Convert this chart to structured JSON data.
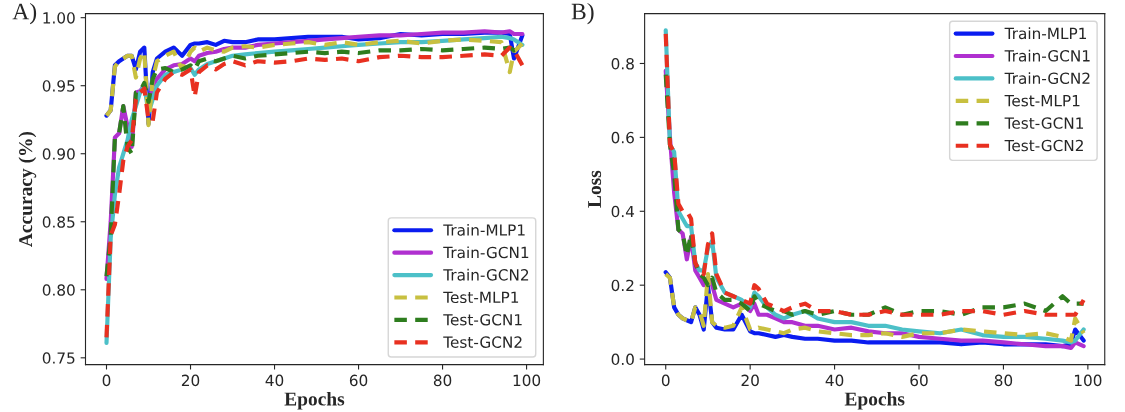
{
  "chart_data": [
    {
      "type": "line",
      "title": "A)",
      "xlabel": "Epochs",
      "ylabel": "Accuracy (%)",
      "xlim": [
        -5,
        104
      ],
      "xticks": [
        0,
        20,
        40,
        60,
        80,
        100
      ],
      "ylim": [
        0.745,
        1.003
      ],
      "yticks": [
        {
          "value": 0.75,
          "label": "0.75"
        },
        {
          "value": 0.8,
          "label": "0.80"
        },
        {
          "value": 0.85,
          "label": "0.85"
        },
        {
          "value": 0.9,
          "label": "0.90"
        },
        {
          "value": 0.95,
          "label": "0.95"
        },
        {
          "value": 1.0,
          "label": "1.00"
        }
      ],
      "grid": false,
      "legend": "bottom right",
      "x": [
        0,
        1,
        2,
        3,
        4,
        5,
        6,
        7,
        8,
        9,
        10,
        11,
        12,
        14,
        16,
        18,
        20,
        21,
        22,
        24,
        26,
        28,
        30,
        33,
        36,
        40,
        44,
        48,
        52,
        56,
        60,
        65,
        70,
        75,
        80,
        85,
        90,
        94,
        96,
        97,
        99
      ],
      "series": [
        {
          "name": "Train-MLP1",
          "color": "#0a1cf0",
          "line_style": "solid",
          "values": [
            0.928,
            0.932,
            0.965,
            0.968,
            0.97,
            0.972,
            0.972,
            0.962,
            0.975,
            0.978,
            0.922,
            0.96,
            0.97,
            0.975,
            0.978,
            0.972,
            0.98,
            0.981,
            0.981,
            0.982,
            0.98,
            0.983,
            0.982,
            0.982,
            0.984,
            0.984,
            0.985,
            0.986,
            0.986,
            0.986,
            0.984,
            0.985,
            0.988,
            0.987,
            0.988,
            0.988,
            0.989,
            0.989,
            0.988,
            0.97,
            0.987
          ]
        },
        {
          "name": "Train-GCN1",
          "color": "#b030d0",
          "line_style": "solid",
          "values": [
            0.808,
            0.85,
            0.912,
            0.915,
            0.935,
            0.92,
            0.905,
            0.945,
            0.946,
            0.95,
            0.935,
            0.95,
            0.955,
            0.962,
            0.965,
            0.966,
            0.97,
            0.968,
            0.972,
            0.974,
            0.975,
            0.977,
            0.978,
            0.978,
            0.98,
            0.981,
            0.982,
            0.983,
            0.984,
            0.985,
            0.986,
            0.987,
            0.987,
            0.988,
            0.989,
            0.989,
            0.99,
            0.989,
            0.99,
            0.988,
            0.988
          ]
        },
        {
          "name": "Train-GCN2",
          "color": "#4cc0c8",
          "line_style": "solid",
          "values": [
            0.761,
            0.838,
            0.87,
            0.89,
            0.9,
            0.91,
            0.925,
            0.935,
            0.945,
            0.95,
            0.93,
            0.94,
            0.95,
            0.958,
            0.96,
            0.962,
            0.963,
            0.958,
            0.962,
            0.966,
            0.968,
            0.97,
            0.972,
            0.973,
            0.974,
            0.975,
            0.976,
            0.977,
            0.978,
            0.979,
            0.98,
            0.981,
            0.982,
            0.982,
            0.983,
            0.984,
            0.985,
            0.986,
            0.985,
            0.984,
            0.98
          ]
        },
        {
          "name": "Test-MLP1",
          "color": "#c8c040",
          "line_style": "dashed",
          "values": [
            0.928,
            0.932,
            0.964,
            0.968,
            0.97,
            0.972,
            0.972,
            0.956,
            0.97,
            0.975,
            0.921,
            0.955,
            0.968,
            0.972,
            0.975,
            0.962,
            0.975,
            0.978,
            0.975,
            0.978,
            0.976,
            0.975,
            0.978,
            0.979,
            0.978,
            0.98,
            0.981,
            0.982,
            0.98,
            0.982,
            0.98,
            0.982,
            0.983,
            0.981,
            0.983,
            0.984,
            0.983,
            0.982,
            0.96,
            0.975,
            0.981
          ]
        },
        {
          "name": "Test-GCN1",
          "color": "#2e7d1e",
          "line_style": "dashed",
          "values": [
            0.81,
            0.84,
            0.912,
            0.915,
            0.935,
            0.905,
            0.9,
            0.945,
            0.946,
            0.952,
            0.938,
            0.955,
            0.962,
            0.963,
            0.96,
            0.962,
            0.965,
            0.962,
            0.968,
            0.97,
            0.968,
            0.97,
            0.972,
            0.97,
            0.972,
            0.973,
            0.974,
            0.975,
            0.974,
            0.975,
            0.974,
            0.976,
            0.976,
            0.977,
            0.976,
            0.977,
            0.978,
            0.977,
            0.978,
            0.976,
            0.978
          ]
        },
        {
          "name": "Test-GCN2",
          "color": "#e83020",
          "line_style": "dashed",
          "values": [
            0.765,
            0.84,
            0.848,
            0.87,
            0.895,
            0.905,
            0.91,
            0.94,
            0.945,
            0.948,
            0.925,
            0.924,
            0.945,
            0.955,
            0.96,
            0.958,
            0.962,
            0.942,
            0.96,
            0.965,
            0.962,
            0.966,
            0.968,
            0.965,
            0.968,
            0.967,
            0.968,
            0.97,
            0.969,
            0.97,
            0.968,
            0.971,
            0.972,
            0.971,
            0.971,
            0.972,
            0.973,
            0.972,
            0.978,
            0.976,
            0.965
          ]
        }
      ]
    },
    {
      "type": "line",
      "title": "B)",
      "xlabel": "Epochs",
      "ylabel": "Loss",
      "xlim": [
        -5,
        104
      ],
      "xticks": [
        0,
        20,
        40,
        60,
        80,
        100
      ],
      "ylim": [
        -0.015,
        0.935
      ],
      "yticks": [
        {
          "value": 0,
          "label": "0.0"
        },
        {
          "value": 0.2,
          "label": "0.2"
        },
        {
          "value": 0.4,
          "label": "0.4"
        },
        {
          "value": 0.6,
          "label": "0.6"
        },
        {
          "value": 0.8,
          "label": "0.8"
        }
      ],
      "grid": false,
      "legend": "top right",
      "x": [
        0,
        1,
        2,
        3,
        4,
        5,
        6,
        7,
        8,
        9,
        10,
        11,
        12,
        14,
        16,
        18,
        20,
        21,
        22,
        24,
        26,
        28,
        30,
        33,
        36,
        40,
        44,
        48,
        52,
        56,
        60,
        65,
        70,
        75,
        80,
        85,
        90,
        94,
        96,
        97,
        99
      ],
      "series": [
        {
          "name": "Train-MLP1",
          "color": "#0a1cf0",
          "line_style": "solid",
          "values": [
            0.235,
            0.22,
            0.14,
            0.12,
            0.11,
            0.105,
            0.1,
            0.14,
            0.12,
            0.08,
            0.2,
            0.1,
            0.085,
            0.08,
            0.08,
            0.12,
            0.075,
            0.07,
            0.07,
            0.065,
            0.06,
            0.065,
            0.06,
            0.055,
            0.055,
            0.05,
            0.05,
            0.045,
            0.045,
            0.045,
            0.045,
            0.045,
            0.04,
            0.045,
            0.04,
            0.04,
            0.04,
            0.035,
            0.04,
            0.08,
            0.05
          ]
        },
        {
          "name": "Train-GCN1",
          "color": "#b030d0",
          "line_style": "solid",
          "values": [
            0.78,
            0.6,
            0.45,
            0.35,
            0.34,
            0.27,
            0.33,
            0.24,
            0.22,
            0.2,
            0.22,
            0.2,
            0.16,
            0.15,
            0.14,
            0.15,
            0.13,
            0.15,
            0.12,
            0.12,
            0.11,
            0.1,
            0.1,
            0.09,
            0.09,
            0.08,
            0.085,
            0.075,
            0.07,
            0.07,
            0.06,
            0.055,
            0.05,
            0.05,
            0.045,
            0.04,
            0.035,
            0.035,
            0.03,
            0.045,
            0.035
          ]
        },
        {
          "name": "Train-GCN2",
          "color": "#4cc0c8",
          "line_style": "solid",
          "values": [
            0.89,
            0.58,
            0.56,
            0.4,
            0.38,
            0.36,
            0.36,
            0.26,
            0.24,
            0.24,
            0.3,
            0.32,
            0.22,
            0.18,
            0.17,
            0.16,
            0.14,
            0.18,
            0.17,
            0.14,
            0.12,
            0.11,
            0.12,
            0.13,
            0.11,
            0.1,
            0.1,
            0.09,
            0.09,
            0.08,
            0.075,
            0.07,
            0.08,
            0.065,
            0.06,
            0.06,
            0.055,
            0.05,
            0.045,
            0.05,
            0.08
          ]
        },
        {
          "name": "Test-MLP1",
          "color": "#c8c040",
          "line_style": "dashed",
          "values": [
            0.23,
            0.22,
            0.14,
            0.12,
            0.11,
            0.105,
            0.1,
            0.14,
            0.13,
            0.09,
            0.23,
            0.1,
            0.09,
            0.085,
            0.09,
            0.14,
            0.08,
            0.08,
            0.085,
            0.08,
            0.075,
            0.07,
            0.08,
            0.085,
            0.075,
            0.07,
            0.065,
            0.065,
            0.07,
            0.06,
            0.07,
            0.07,
            0.08,
            0.075,
            0.07,
            0.065,
            0.07,
            0.06,
            0.05,
            0.11,
            0.07
          ]
        },
        {
          "name": "Test-GCN1",
          "color": "#2e7d1e",
          "line_style": "dashed",
          "values": [
            0.77,
            0.58,
            0.5,
            0.35,
            0.34,
            0.28,
            0.34,
            0.26,
            0.23,
            0.22,
            0.2,
            0.22,
            0.18,
            0.16,
            0.16,
            0.15,
            0.13,
            0.17,
            0.15,
            0.14,
            0.13,
            0.13,
            0.12,
            0.13,
            0.12,
            0.13,
            0.12,
            0.12,
            0.14,
            0.12,
            0.13,
            0.13,
            0.12,
            0.14,
            0.14,
            0.15,
            0.13,
            0.17,
            0.15,
            0.15,
            0.15
          ]
        },
        {
          "name": "Test-GCN2",
          "color": "#e83020",
          "line_style": "dashed",
          "values": [
            0.88,
            0.58,
            0.56,
            0.42,
            0.4,
            0.4,
            0.38,
            0.26,
            0.24,
            0.23,
            0.31,
            0.34,
            0.23,
            0.18,
            0.17,
            0.16,
            0.15,
            0.2,
            0.19,
            0.15,
            0.14,
            0.13,
            0.14,
            0.15,
            0.13,
            0.13,
            0.12,
            0.12,
            0.13,
            0.12,
            0.12,
            0.12,
            0.13,
            0.13,
            0.12,
            0.13,
            0.12,
            0.12,
            0.12,
            0.12,
            0.16
          ]
        }
      ]
    }
  ]
}
